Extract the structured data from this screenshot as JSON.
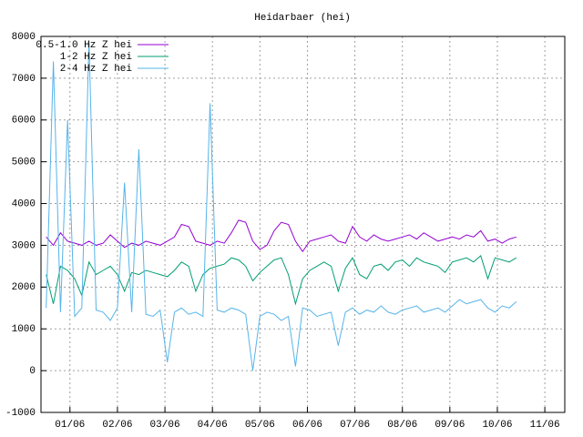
{
  "chart_data": {
    "type": "line",
    "title": "Heidarbaer (hei)",
    "x": [
      0.5,
      0.65,
      0.8,
      0.95,
      1.1,
      1.25,
      1.4,
      1.55,
      1.7,
      1.85,
      2.0,
      2.15,
      2.3,
      2.45,
      2.6,
      2.75,
      2.9,
      3.05,
      3.2,
      3.35,
      3.5,
      3.65,
      3.8,
      3.95,
      4.1,
      4.25,
      4.4,
      4.55,
      4.7,
      4.85,
      5.0,
      5.15,
      5.3,
      5.45,
      5.6,
      5.75,
      5.9,
      6.05,
      6.2,
      6.35,
      6.5,
      6.65,
      6.8,
      6.95,
      7.1,
      7.25,
      7.4,
      7.55,
      7.7,
      7.85,
      8.0,
      8.15,
      8.3,
      8.45,
      8.6,
      8.75,
      8.9,
      9.05,
      9.2,
      9.35,
      9.5,
      9.65,
      9.8,
      9.95,
      10.1,
      10.25,
      10.4
    ],
    "series": [
      {
        "name": "0.5-1.0 Hz Z hei",
        "color": "#9400d3",
        "values": [
          3200,
          3000,
          3300,
          3100,
          3050,
          3000,
          3100,
          3000,
          3050,
          3250,
          3100,
          2950,
          3050,
          3000,
          3100,
          3050,
          3000,
          3100,
          3200,
          3500,
          3450,
          3100,
          3050,
          3000,
          3100,
          3050,
          3300,
          3600,
          3550,
          3100,
          2900,
          3000,
          3350,
          3550,
          3500,
          3100,
          2850,
          3100,
          3150,
          3200,
          3250,
          3100,
          3050,
          3450,
          3200,
          3100,
          3250,
          3150,
          3100,
          3150,
          3200,
          3250,
          3150,
          3300,
          3200,
          3100,
          3150,
          3200,
          3150,
          3250,
          3200,
          3350,
          3100,
          3150,
          3050,
          3150,
          3200
        ]
      },
      {
        "name": "1-2 Hz Z hei",
        "color": "#009e73",
        "values": [
          2300,
          1600,
          2500,
          2400,
          2200,
          1800,
          2600,
          2300,
          2400,
          2500,
          2300,
          1900,
          2350,
          2300,
          2400,
          2350,
          2300,
          2250,
          2400,
          2600,
          2500,
          1900,
          2300,
          2450,
          2500,
          2550,
          2700,
          2650,
          2500,
          2150,
          2350,
          2500,
          2650,
          2700,
          2300,
          1600,
          2200,
          2400,
          2500,
          2600,
          2500,
          1900,
          2450,
          2700,
          2300,
          2200,
          2500,
          2550,
          2400,
          2600,
          2650,
          2500,
          2700,
          2600,
          2550,
          2500,
          2350,
          2600,
          2650,
          2700,
          2600,
          2750,
          2200,
          2700,
          2650,
          2600,
          2700
        ]
      },
      {
        "name": "2-4 Hz Z hei",
        "color": "#56b4e9",
        "values": [
          1500,
          7400,
          1400,
          6000,
          1300,
          1500,
          7900,
          1450,
          1400,
          1200,
          1500,
          4500,
          1400,
          5300,
          1350,
          1300,
          1450,
          200,
          1400,
          1500,
          1350,
          1400,
          1300,
          6400,
          1450,
          1400,
          1500,
          1450,
          1350,
          0,
          1300,
          1400,
          1350,
          1200,
          1300,
          100,
          1500,
          1450,
          1300,
          1350,
          1400,
          600,
          1400,
          1500,
          1350,
          1450,
          1400,
          1550,
          1400,
          1350,
          1450,
          1500,
          1550,
          1400,
          1450,
          1500,
          1400,
          1550,
          1700,
          1600,
          1650,
          1700,
          1500,
          1400,
          1550,
          1500,
          1650
        ]
      }
    ],
    "xlim": [
      0.39,
      11.42
    ],
    "xticks": [
      {
        "value": 1,
        "label": "01/06"
      },
      {
        "value": 2,
        "label": "02/06"
      },
      {
        "value": 3,
        "label": "03/06"
      },
      {
        "value": 4,
        "label": "04/06"
      },
      {
        "value": 5,
        "label": "05/06"
      },
      {
        "value": 6,
        "label": "06/06"
      },
      {
        "value": 7,
        "label": "07/06"
      },
      {
        "value": 8,
        "label": "08/06"
      },
      {
        "value": 9,
        "label": "09/06"
      },
      {
        "value": 10,
        "label": "10/06"
      },
      {
        "value": 11,
        "label": "11/06"
      }
    ],
    "ylim": [
      -1000,
      8000
    ],
    "yticks": [
      -1000,
      0,
      1000,
      2000,
      3000,
      4000,
      5000,
      6000,
      7000,
      8000
    ],
    "grid": true
  }
}
